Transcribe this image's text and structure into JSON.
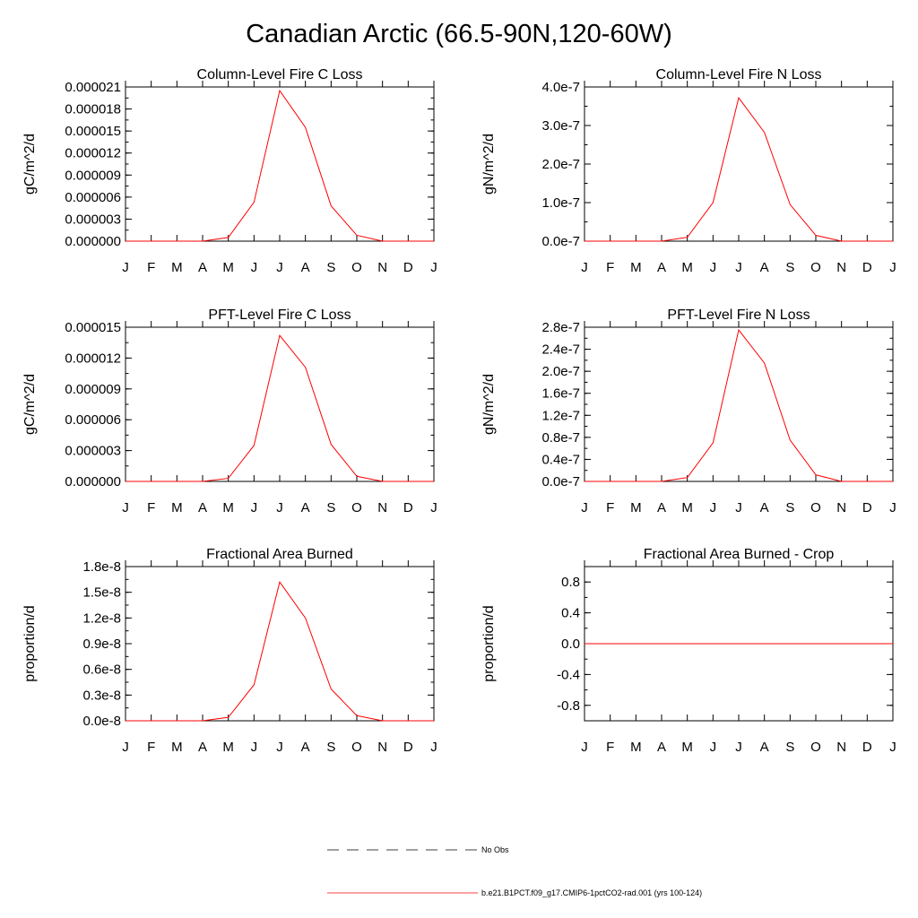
{
  "title": "Canadian Arctic (66.5-90N,120-60W)",
  "months": [
    "J",
    "F",
    "M",
    "A",
    "M",
    "J",
    "J",
    "A",
    "S",
    "O",
    "N",
    "D",
    "J"
  ],
  "series_color": "#ff0000",
  "chart_data": [
    {
      "type": "line",
      "title": "Column-Level Fire C Loss",
      "ylabel": "gC/m^2/d",
      "ylim": [
        0,
        2.1e-05
      ],
      "yticks": [
        0,
        3e-06,
        6e-06,
        9e-06,
        1.2e-05,
        1.5e-05,
        1.8e-05,
        2.1e-05
      ],
      "yticklabels": [
        "0.000000",
        "0.000003",
        "0.000006",
        "0.000009",
        "0.000012",
        "0.000015",
        "0.000018",
        "0.000021"
      ],
      "values": [
        0,
        0,
        0,
        0,
        5e-07,
        5.3e-06,
        2.05e-05,
        1.55e-05,
        4.8e-06,
        8e-07,
        0,
        0,
        0
      ]
    },
    {
      "type": "line",
      "title": "Column-Level Fire N Loss",
      "ylabel": "gN/m^2/d",
      "ylim": [
        0,
        4e-07
      ],
      "yticks": [
        0,
        1e-07,
        2e-07,
        3e-07,
        4e-07
      ],
      "yticklabels": [
        "0.0e-7",
        "1.0e-7",
        "2.0e-7",
        "3.0e-7",
        "4.0e-7"
      ],
      "values": [
        0,
        0,
        0,
        0,
        1e-08,
        1e-07,
        3.72e-07,
        2.82e-07,
        9.5e-08,
        1.5e-08,
        0,
        0,
        0
      ]
    },
    {
      "type": "line",
      "title": "PFT-Level Fire C Loss",
      "ylabel": "gC/m^2/d",
      "ylim": [
        0,
        1.5e-05
      ],
      "yticks": [
        0,
        3e-06,
        6e-06,
        9e-06,
        1.2e-05,
        1.5e-05
      ],
      "yticklabels": [
        "0.000000",
        "0.000003",
        "0.000006",
        "0.000009",
        "0.000012",
        "0.000015"
      ],
      "values": [
        0,
        0,
        0,
        0,
        3e-07,
        3.5e-06,
        1.42e-05,
        1.11e-05,
        3.6e-06,
        5e-07,
        0,
        0,
        0
      ]
    },
    {
      "type": "line",
      "title": "PFT-Level Fire N Loss",
      "ylabel": "gN/m^2/d",
      "ylim": [
        0,
        2.8e-07
      ],
      "yticks": [
        0,
        4e-08,
        8e-08,
        1.2e-07,
        1.6e-07,
        2e-07,
        2.4e-07,
        2.8e-07
      ],
      "yticklabels": [
        "0.0e-7",
        "0.4e-7",
        "0.8e-7",
        "1.2e-7",
        "1.6e-7",
        "2.0e-7",
        "2.4e-7",
        "2.8e-7"
      ],
      "values": [
        0,
        0,
        0,
        0,
        7e-09,
        7e-08,
        2.75e-07,
        2.15e-07,
        7.5e-08,
        1.2e-08,
        0,
        0,
        0
      ]
    },
    {
      "type": "line",
      "title": "Fractional Area Burned",
      "ylabel": "proportion/d",
      "ylim": [
        0,
        1.8e-08
      ],
      "yticks": [
        0,
        3e-09,
        6e-09,
        9e-09,
        1.2e-08,
        1.5e-08,
        1.8e-08
      ],
      "yticklabels": [
        "0.0e-8",
        "0.3e-8",
        "0.6e-8",
        "0.9e-8",
        "1.2e-8",
        "1.5e-8",
        "1.8e-8"
      ],
      "values": [
        0,
        0,
        0,
        0,
        4e-10,
        4.2e-09,
        1.62e-08,
        1.2e-08,
        3.7e-09,
        6e-10,
        0,
        0,
        0
      ]
    },
    {
      "type": "line",
      "title": "Fractional Area Burned - Crop",
      "ylabel": "proportion/d",
      "ylim": [
        -1.0,
        1.0
      ],
      "yticks": [
        -0.8,
        -0.4,
        0.0,
        0.4,
        0.8
      ],
      "yticklabels": [
        "-0.8",
        "-0.4",
        "0.0",
        "0.4",
        "0.8"
      ],
      "values": [
        0,
        0,
        0,
        0,
        0,
        0,
        0,
        0,
        0,
        0,
        0,
        0,
        0
      ]
    }
  ],
  "legend": {
    "items": [
      {
        "label": "No Obs",
        "style": "dashed",
        "color": "#000000"
      },
      {
        "label": "b.e21.B1PCT.f09_g17.CMIP6-1pctCO2-rad.001 (yrs 100-124)",
        "style": "solid",
        "color": "#ff0000"
      }
    ]
  }
}
